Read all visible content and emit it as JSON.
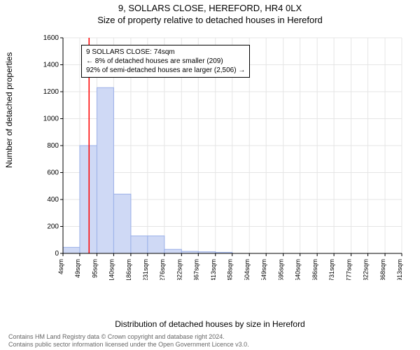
{
  "title1": "9, SOLLARS CLOSE, HEREFORD, HR4 0LX",
  "title2": "Size of property relative to detached houses in Hereford",
  "ylabel": "Number of detached properties",
  "xlabel": "Distribution of detached houses by size in Hereford",
  "footer_line1": "Contains HM Land Registry data © Crown copyright and database right 2024.",
  "footer_line2": "Contains public sector information licensed under the Open Government Licence v3.0.",
  "annotation": {
    "line1": "9 SOLLARS CLOSE: 74sqm",
    "line2": "← 8% of detached houses are smaller (209)",
    "line3": "92% of semi-detached houses are larger (2,506) →"
  },
  "chart": {
    "type": "histogram",
    "background_color": "#ffffff",
    "grid_color": "#e5e5e5",
    "axis_color": "#000000",
    "bar_fill": "#cfd9f5",
    "bar_stroke": "#9bb0e8",
    "marker_line_color": "#ff0000",
    "ylim": [
      0,
      1600
    ],
    "yticks": [
      0,
      200,
      400,
      600,
      800,
      1000,
      1200,
      1400,
      1600
    ],
    "x_tick_labels": [
      "4sqm",
      "49sqm",
      "95sqm",
      "140sqm",
      "186sqm",
      "231sqm",
      "276sqm",
      "322sqm",
      "367sqm",
      "413sqm",
      "458sqm",
      "504sqm",
      "549sqm",
      "595sqm",
      "640sqm",
      "686sqm",
      "731sqm",
      "777sqm",
      "822sqm",
      "868sqm",
      "913sqm"
    ],
    "x_tick_positions": [
      4,
      49,
      95,
      140,
      186,
      231,
      276,
      322,
      367,
      413,
      458,
      504,
      549,
      595,
      640,
      686,
      731,
      777,
      822,
      868,
      913
    ],
    "x_min": 4,
    "x_max": 913,
    "bars": [
      {
        "x0": 4,
        "x1": 49,
        "count": 45
      },
      {
        "x0": 49,
        "x1": 95,
        "count": 800
      },
      {
        "x0": 95,
        "x1": 140,
        "count": 1230
      },
      {
        "x0": 140,
        "x1": 186,
        "count": 440
      },
      {
        "x0": 186,
        "x1": 231,
        "count": 130
      },
      {
        "x0": 231,
        "x1": 276,
        "count": 130
      },
      {
        "x0": 276,
        "x1": 322,
        "count": 30
      },
      {
        "x0": 322,
        "x1": 367,
        "count": 15
      },
      {
        "x0": 367,
        "x1": 413,
        "count": 12
      },
      {
        "x0": 413,
        "x1": 458,
        "count": 8
      }
    ],
    "marker_x": 74,
    "label_fontsize": 12,
    "tick_fontsize": 10
  }
}
